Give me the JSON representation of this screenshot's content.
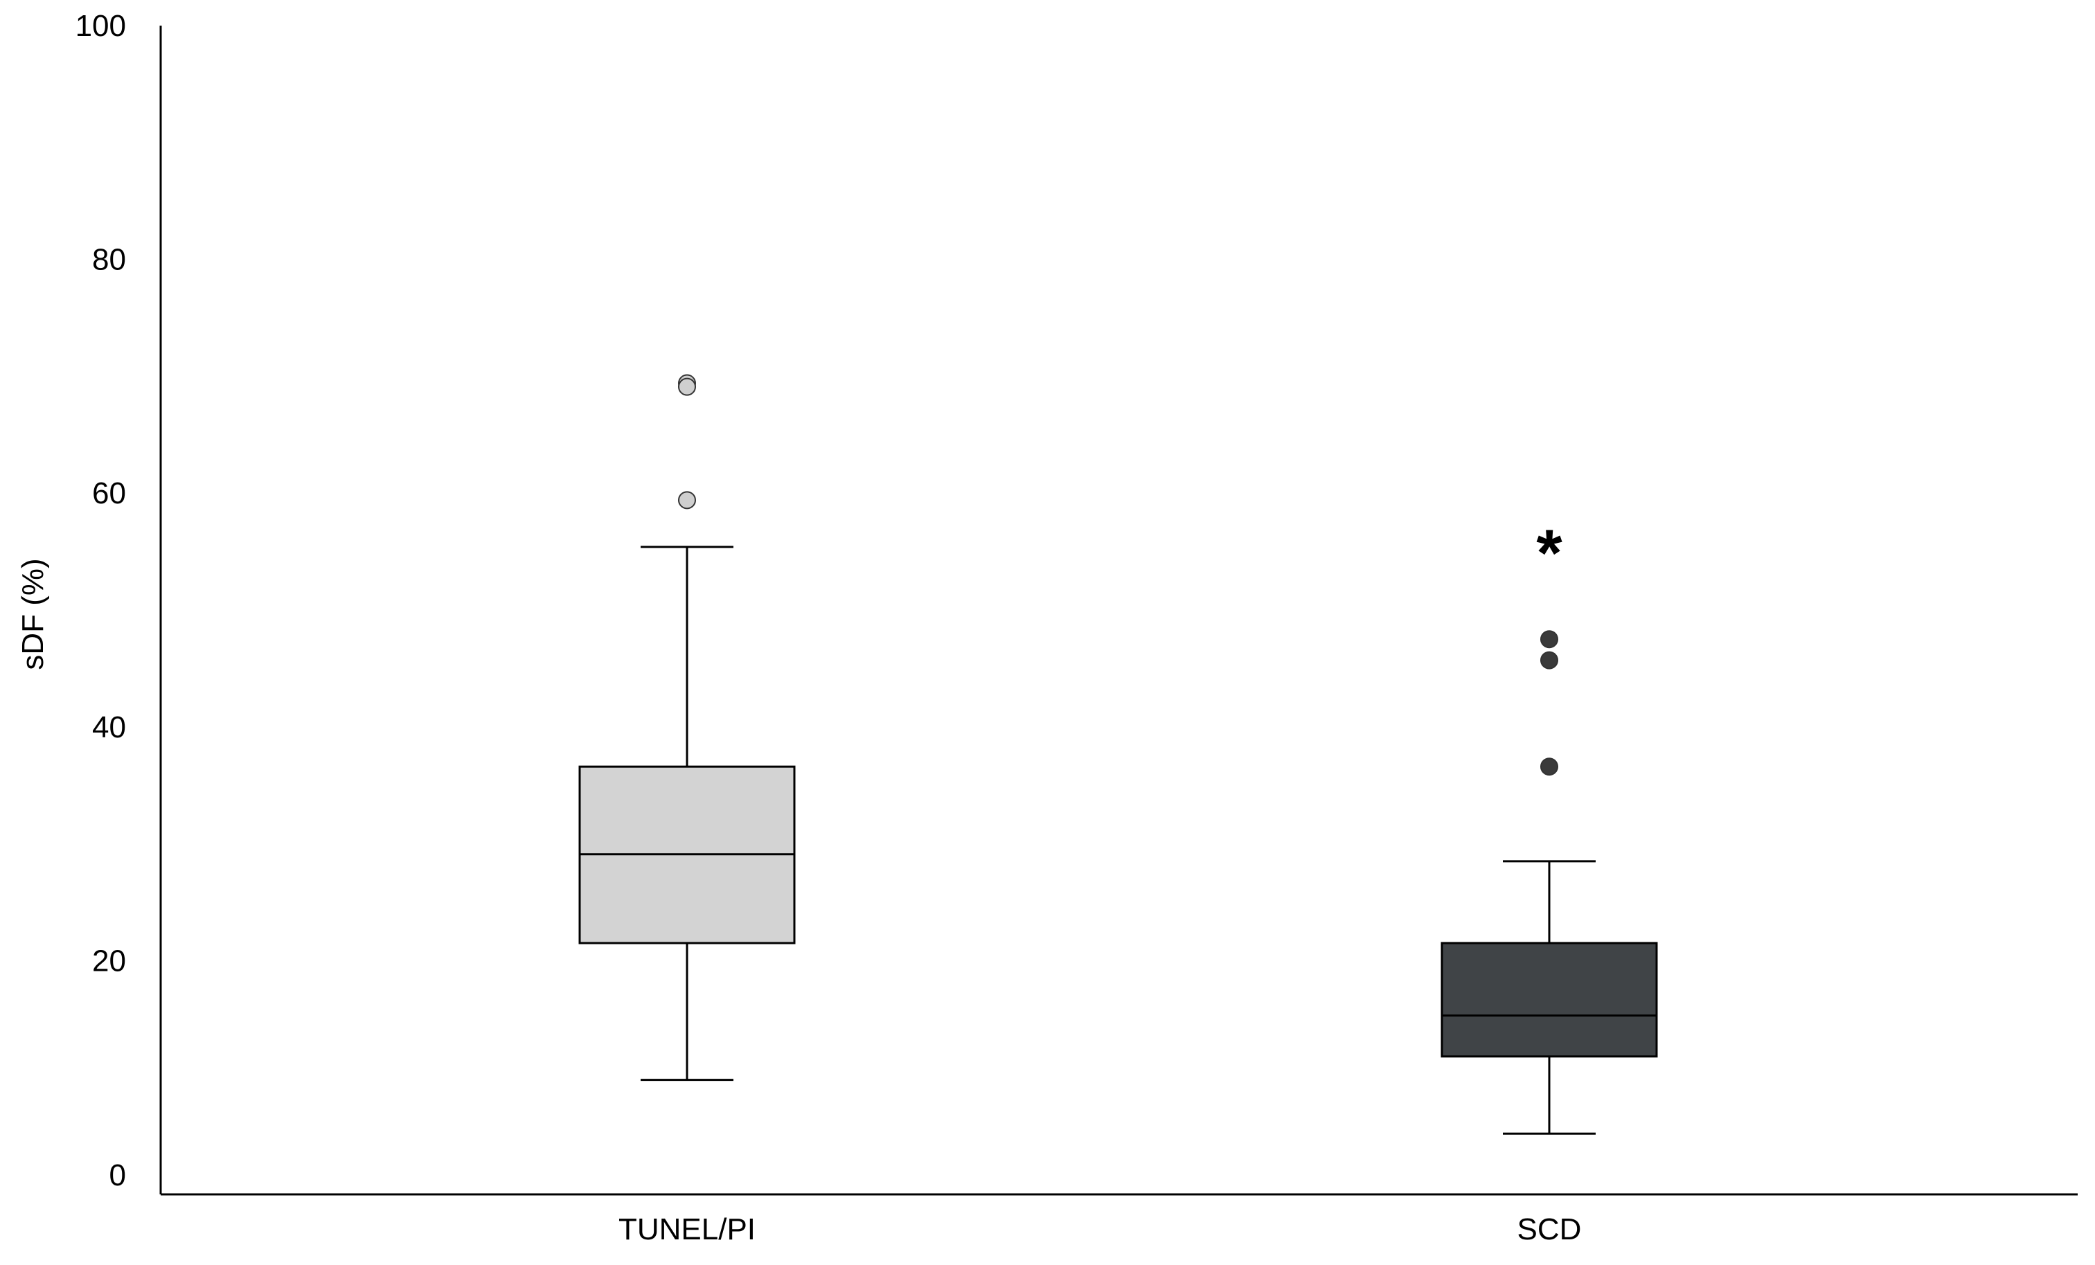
{
  "chart_data": {
    "type": "box",
    "ylabel": "sDF (%)",
    "xlabel": "",
    "ylim": [
      0,
      100
    ],
    "yticks": [
      0,
      20,
      40,
      60,
      80,
      100
    ],
    "grid": false,
    "categories": [
      "TUNEL/PI",
      "SCD"
    ],
    "boxes": [
      {
        "category": "TUNEL/PI",
        "whisker_low": 9.8,
        "q1": 21.5,
        "median": 29.1,
        "q3": 36.6,
        "whisker_high": 55.4,
        "outliers": [
          69.4,
          69.1,
          59.4
        ],
        "extremes": [],
        "fill": "#d3d3d3",
        "outlier_color": "#cfcfcf"
      },
      {
        "category": "SCD",
        "whisker_low": 5.2,
        "q1": 11.8,
        "median": 15.3,
        "q3": 21.5,
        "whisker_high": 28.5,
        "outliers": [
          47.5,
          45.7,
          36.6
        ],
        "extremes": [
          55.9
        ],
        "fill": "#404447",
        "outlier_color": "#3a3a3a"
      }
    ],
    "extreme_marker": "*"
  }
}
